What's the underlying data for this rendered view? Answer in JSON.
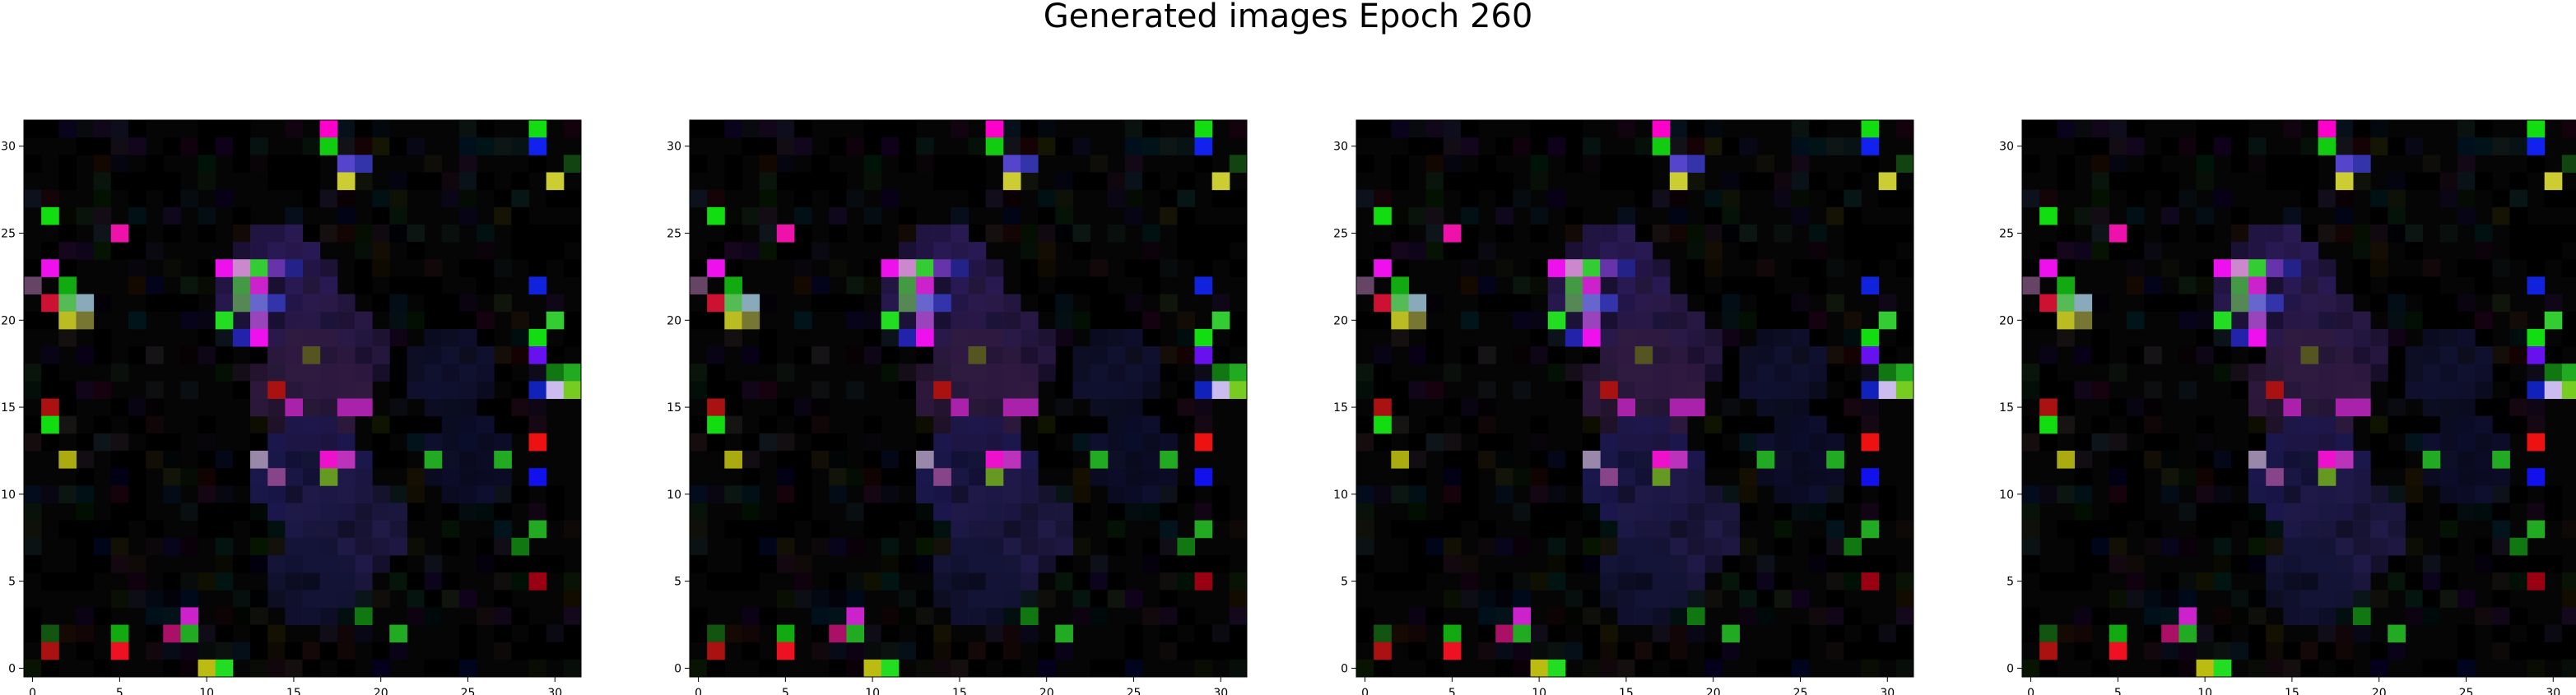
{
  "figure": {
    "title": "Generated images Epoch 260"
  },
  "chart_data": [
    {
      "type": "heatmap",
      "title": "",
      "grid": false,
      "xlim": [
        -0.5,
        31.5
      ],
      "ylim": [
        31.5,
        -0.5
      ],
      "xticks": [
        "0",
        "5",
        "10",
        "15",
        "20",
        "25",
        "30"
      ],
      "yticks": [
        "0",
        "5",
        "10",
        "15",
        "20",
        "25",
        "30"
      ]
    },
    {
      "type": "heatmap",
      "title": "",
      "grid": false,
      "xlim": [
        -0.5,
        31.5
      ],
      "ylim": [
        31.5,
        -0.5
      ],
      "xticks": [
        "0",
        "5",
        "10",
        "15",
        "20",
        "25",
        "30"
      ],
      "yticks": [
        "0",
        "5",
        "10",
        "15",
        "20",
        "25",
        "30"
      ]
    },
    {
      "type": "heatmap",
      "title": "",
      "grid": false,
      "xlim": [
        -0.5,
        31.5
      ],
      "ylim": [
        31.5,
        -0.5
      ],
      "xticks": [
        "0",
        "5",
        "10",
        "15",
        "20",
        "25",
        "30"
      ],
      "yticks": [
        "0",
        "5",
        "10",
        "15",
        "20",
        "25",
        "30"
      ]
    },
    {
      "type": "heatmap",
      "title": "",
      "grid": false,
      "xlim": [
        -0.5,
        31.5
      ],
      "ylim": [
        31.5,
        -0.5
      ],
      "xticks": [
        "0",
        "5",
        "10",
        "15",
        "20",
        "25",
        "30"
      ],
      "yticks": [
        "0",
        "5",
        "10",
        "15",
        "20",
        "25",
        "30"
      ]
    }
  ],
  "image": {
    "grid_size": 32,
    "background": "#050505",
    "bright_pixels": [
      {
        "x": 17,
        "y": 0,
        "color": "#ff00cc"
      },
      {
        "x": 29,
        "y": 0,
        "color": "#11dd11"
      },
      {
        "x": 17,
        "y": 1,
        "color": "#11cc11"
      },
      {
        "x": 29,
        "y": 1,
        "color": "#1122ee"
      },
      {
        "x": 18,
        "y": 2,
        "color": "#5544cc"
      },
      {
        "x": 19,
        "y": 2,
        "color": "#3333aa"
      },
      {
        "x": 31,
        "y": 2,
        "color": "#114411"
      },
      {
        "x": 18,
        "y": 3,
        "color": "#cccc33"
      },
      {
        "x": 30,
        "y": 3,
        "color": "#cccc33"
      },
      {
        "x": 1,
        "y": 5,
        "color": "#11dd11"
      },
      {
        "x": 5,
        "y": 6,
        "color": "#ee11aa"
      },
      {
        "x": 1,
        "y": 8,
        "color": "#ee11ee"
      },
      {
        "x": 11,
        "y": 8,
        "color": "#ee11ee"
      },
      {
        "x": 12,
        "y": 8,
        "color": "#cc88cc"
      },
      {
        "x": 13,
        "y": 8,
        "color": "#33cc33"
      },
      {
        "x": 14,
        "y": 8,
        "color": "#6633aa"
      },
      {
        "x": 15,
        "y": 8,
        "color": "#222288"
      },
      {
        "x": 0,
        "y": 9,
        "color": "#664466"
      },
      {
        "x": 2,
        "y": 9,
        "color": "#11aa11"
      },
      {
        "x": 12,
        "y": 9,
        "color": "#449944"
      },
      {
        "x": 13,
        "y": 9,
        "color": "#cc22cc"
      },
      {
        "x": 29,
        "y": 9,
        "color": "#1122dd"
      },
      {
        "x": 1,
        "y": 10,
        "color": "#cc1133"
      },
      {
        "x": 2,
        "y": 10,
        "color": "#55bb55"
      },
      {
        "x": 3,
        "y": 10,
        "color": "#88aabb"
      },
      {
        "x": 12,
        "y": 10,
        "color": "#558855"
      },
      {
        "x": 13,
        "y": 10,
        "color": "#6666cc"
      },
      {
        "x": 14,
        "y": 10,
        "color": "#3333aa"
      },
      {
        "x": 2,
        "y": 11,
        "color": "#bbbb22"
      },
      {
        "x": 3,
        "y": 11,
        "color": "#777733"
      },
      {
        "x": 11,
        "y": 11,
        "color": "#22dd22"
      },
      {
        "x": 13,
        "y": 11,
        "color": "#9944bb"
      },
      {
        "x": 30,
        "y": 11,
        "color": "#33cc33"
      },
      {
        "x": 12,
        "y": 12,
        "color": "#2222aa"
      },
      {
        "x": 13,
        "y": 12,
        "color": "#ee11ee"
      },
      {
        "x": 29,
        "y": 12,
        "color": "#11dd11"
      },
      {
        "x": 16,
        "y": 13,
        "color": "#555522"
      },
      {
        "x": 29,
        "y": 13,
        "color": "#6611ee"
      },
      {
        "x": 30,
        "y": 14,
        "color": "#117711"
      },
      {
        "x": 31,
        "y": 14,
        "color": "#22aa22"
      },
      {
        "x": 14,
        "y": 15,
        "color": "#aa1111"
      },
      {
        "x": 29,
        "y": 15,
        "color": "#1122bb"
      },
      {
        "x": 30,
        "y": 15,
        "color": "#ccbbee"
      },
      {
        "x": 31,
        "y": 15,
        "color": "#77cc22"
      },
      {
        "x": 1,
        "y": 16,
        "color": "#aa1111"
      },
      {
        "x": 15,
        "y": 16,
        "color": "#aa22aa"
      },
      {
        "x": 18,
        "y": 16,
        "color": "#aa22aa"
      },
      {
        "x": 19,
        "y": 16,
        "color": "#aa22aa"
      },
      {
        "x": 1,
        "y": 17,
        "color": "#11dd11"
      },
      {
        "x": 29,
        "y": 18,
        "color": "#ee1111"
      },
      {
        "x": 2,
        "y": 19,
        "color": "#aaaa11"
      },
      {
        "x": 13,
        "y": 19,
        "color": "#9988aa"
      },
      {
        "x": 17,
        "y": 19,
        "color": "#ee11cc"
      },
      {
        "x": 18,
        "y": 19,
        "color": "#bb33bb"
      },
      {
        "x": 23,
        "y": 19,
        "color": "#22aa22"
      },
      {
        "x": 27,
        "y": 19,
        "color": "#22aa22"
      },
      {
        "x": 14,
        "y": 20,
        "color": "#884488"
      },
      {
        "x": 17,
        "y": 20,
        "color": "#669922"
      },
      {
        "x": 29,
        "y": 20,
        "color": "#1111ee"
      },
      {
        "x": 29,
        "y": 23,
        "color": "#22aa22"
      },
      {
        "x": 28,
        "y": 24,
        "color": "#117711"
      },
      {
        "x": 29,
        "y": 26,
        "color": "#990011"
      },
      {
        "x": 9,
        "y": 28,
        "color": "#cc22cc"
      },
      {
        "x": 19,
        "y": 28,
        "color": "#117711"
      },
      {
        "x": 8,
        "y": 29,
        "color": "#aa1166"
      },
      {
        "x": 9,
        "y": 29,
        "color": "#22aa22"
      },
      {
        "x": 5,
        "y": 29,
        "color": "#11aa11"
      },
      {
        "x": 21,
        "y": 29,
        "color": "#22aa22"
      },
      {
        "x": 1,
        "y": 29,
        "color": "#115511"
      },
      {
        "x": 1,
        "y": 30,
        "color": "#aa1111"
      },
      {
        "x": 5,
        "y": 30,
        "color": "#ee1122"
      },
      {
        "x": 10,
        "y": 31,
        "color": "#bbbb11"
      },
      {
        "x": 11,
        "y": 31,
        "color": "#22dd22"
      }
    ],
    "blobs": [
      {
        "cx": 14,
        "cy": 9,
        "r": 3,
        "color": "#2a1a55"
      },
      {
        "cx": 17,
        "cy": 13,
        "r": 3,
        "color": "#2a1a4a"
      },
      {
        "cx": 16,
        "cy": 15,
        "r": 3,
        "color": "#301a40"
      },
      {
        "cx": 16,
        "cy": 20,
        "r": 3,
        "color": "#1c1850"
      },
      {
        "cx": 18,
        "cy": 23,
        "r": 3,
        "color": "#201a48"
      },
      {
        "cx": 16,
        "cy": 26,
        "r": 2,
        "color": "#141438"
      },
      {
        "cx": 24,
        "cy": 14,
        "r": 2,
        "color": "#101030"
      },
      {
        "cx": 25,
        "cy": 19,
        "r": 2,
        "color": "#0e0e30"
      }
    ]
  }
}
